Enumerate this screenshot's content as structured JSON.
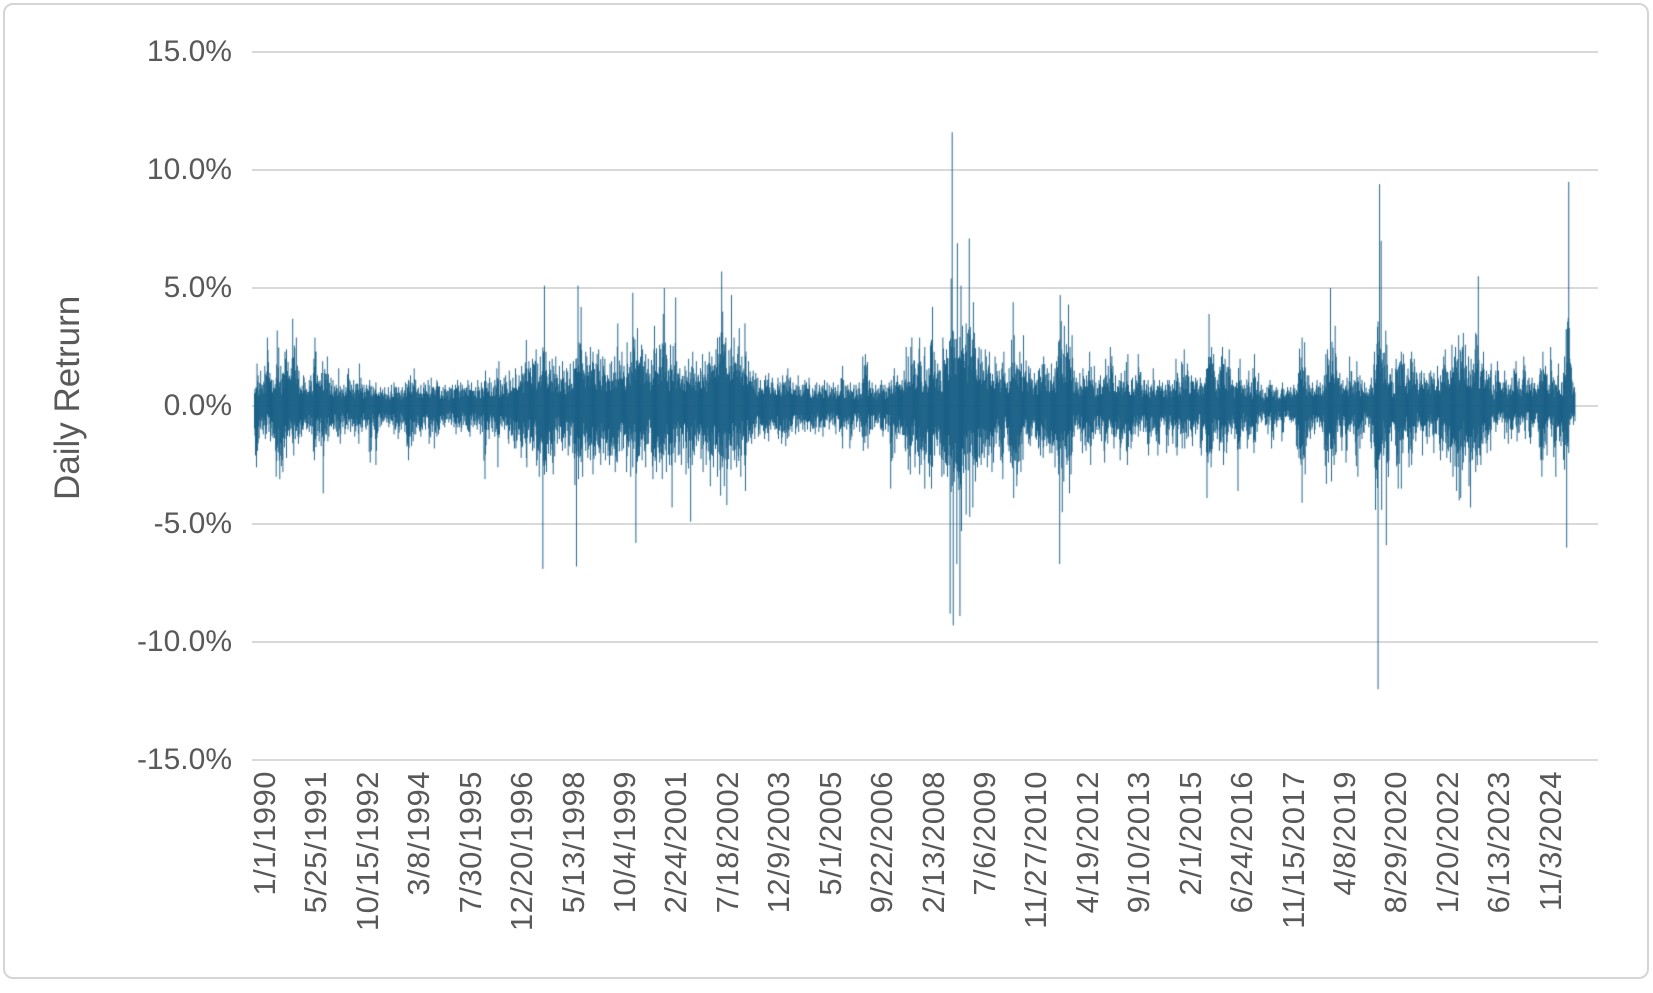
{
  "chart_data": {
    "type": "bar",
    "title": "",
    "ylabel": "Daily Retrurn",
    "xlabel": "",
    "legend": "none",
    "grid": "horizontal",
    "ylim_percent": [
      -15,
      15
    ],
    "y_tick_interval_percent": 5,
    "y_ticks": [
      {
        "label": "15.0%",
        "value": 15
      },
      {
        "label": "10.0%",
        "value": 10
      },
      {
        "label": "5.0%",
        "value": 5
      },
      {
        "label": "0.0%",
        "value": 0
      },
      {
        "label": "-5.0%",
        "value": -5
      },
      {
        "label": "-10.0%",
        "value": -10
      },
      {
        "label": "-15.0%",
        "value": -15
      }
    ],
    "x_tick_labels": [
      "1/1/1990",
      "5/25/1991",
      "10/15/1992",
      "3/8/1994",
      "7/30/1995",
      "12/20/1996",
      "5/13/1998",
      "10/4/1999",
      "2/24/2001",
      "7/18/2002",
      "12/9/2003",
      "5/1/2005",
      "9/22/2006",
      "2/13/2008",
      "7/6/2009",
      "11/27/2010",
      "4/19/2012",
      "9/10/2013",
      "2/1/2015",
      "6/24/2016",
      "11/15/2017",
      "4/8/2019",
      "8/29/2020",
      "1/20/2022",
      "6/13/2023",
      "11/3/2024"
    ],
    "series": [
      {
        "name": "Daily Return",
        "sampling": "monthly high/low envelope in percent, Jan 1990 - Jun 2025, read from plot",
        "months_start": "1990-01",
        "hi": [
          1.8,
          1.3,
          1.5,
          1.7,
          2.9,
          1.4,
          1.1,
          3.2,
          1.7,
          2.3,
          2.4,
          1.6,
          3.7,
          2.9,
          1.5,
          1.3,
          1.2,
          1.1,
          1.3,
          2.9,
          1.3,
          1.4,
          1.9,
          2.1,
          1.2,
          1.1,
          0.9,
          1.6,
          0.9,
          0.8,
          1.6,
          0.9,
          1.1,
          1.8,
          1.2,
          0.9,
          0.9,
          1.1,
          0.8,
          1.0,
          0.8,
          0.7,
          0.8,
          0.8,
          0.9,
          1.0,
          0.8,
          0.8,
          1.0,
          1.1,
          1.3,
          1.6,
          1.1,
          0.9,
          1.0,
          0.9,
          1.1,
          1.2,
          1.1,
          1.0,
          0.8,
          0.9,
          0.8,
          0.9,
          0.9,
          1.1,
          1.0,
          0.9,
          1.1,
          0.9,
          1.0,
          0.8,
          1.1,
          1.0,
          1.5,
          1.2,
          1.0,
          1.1,
          1.9,
          1.1,
          1.2,
          1.3,
          1.5,
          1.2,
          1.6,
          1.3,
          1.7,
          2.8,
          1.9,
          2.0,
          2.4,
          1.8,
          2.1,
          5.1,
          2.3,
          1.9,
          2.0,
          2.1,
          1.7,
          1.9,
          1.6,
          1.8,
          1.9,
          2.0,
          5.1,
          4.2,
          2.3,
          2.1,
          2.5,
          2.3,
          2.2,
          2.4,
          2.1,
          2.0,
          1.8,
          1.9,
          2.1,
          3.5,
          2.3,
          1.7,
          2.7,
          2.3,
          4.8,
          3.3,
          2.6,
          2.4,
          2.2,
          2.0,
          2.4,
          3.4,
          2.6,
          3.9,
          5.0,
          2.0,
          2.6,
          4.6,
          1.9,
          1.6,
          1.7,
          1.5,
          2.0,
          2.3,
          1.9,
          1.6,
          2.2,
          1.9,
          2.3,
          2.1,
          2.4,
          2.9,
          5.7,
          4.0,
          2.9,
          4.7,
          2.9,
          2.2,
          3.3,
          2.1,
          3.5,
          1.9,
          1.5,
          1.4,
          1.2,
          1.1,
          1.3,
          1.4,
          1.0,
          1.2,
          1.2,
          1.0,
          1.3,
          1.3,
          1.6,
          1.0,
          0.9,
          1.3,
          0.9,
          1.1,
          1.2,
          0.9,
          0.9,
          1.0,
          0.9,
          1.1,
          1.0,
          0.9,
          1.0,
          0.8,
          0.9,
          1.7,
          1.1,
          0.9,
          1.0,
          0.9,
          0.9,
          1.0,
          2.1,
          2.2,
          1.1,
          1.0,
          0.9,
          0.9,
          1.1,
          0.9,
          1.0,
          1.1,
          1.6,
          1.3,
          1.1,
          1.5,
          2.5,
          2.5,
          2.9,
          1.6,
          2.9,
          1.7,
          2.5,
          1.6,
          4.2,
          2.3,
          1.8,
          1.5,
          2.9,
          2.4,
          5.4,
          11.6,
          6.9,
          5.1,
          3.4,
          3.5,
          7.1,
          4.4,
          3.1,
          2.5,
          2.4,
          2.4,
          2.1,
          2.3,
          2.1,
          1.8,
          1.5,
          2.3,
          1.4,
          1.6,
          4.4,
          3.0,
          2.3,
          1.8,
          3.0,
          1.7,
          1.6,
          1.4,
          1.5,
          1.6,
          2.1,
          1.6,
          1.4,
          1.8,
          1.9,
          4.7,
          3.6,
          3.4,
          4.3,
          3.0,
          1.5,
          1.2,
          1.4,
          1.6,
          1.3,
          2.3,
          1.7,
          1.0,
          1.3,
          1.1,
          2.0,
          1.7,
          2.5,
          1.3,
          1.1,
          1.4,
          1.5,
          2.2,
          1.1,
          1.2,
          1.3,
          2.2,
          1.1,
          1.1,
          1.1,
          1.6,
          1.1,
          1.1,
          1.0,
          0.9,
          1.1,
          1.1,
          1.1,
          2.0,
          1.0,
          2.4,
          1.8,
          1.5,
          1.3,
          1.2,
          1.1,
          1.2,
          1.2,
          3.9,
          2.5,
          2.2,
          1.1,
          2.1,
          2.5,
          2.0,
          2.4,
          1.1,
          1.0,
          2.0,
          1.1,
          0.9,
          1.5,
          1.0,
          2.2,
          1.4,
          0.9,
          0.7,
          0.8,
          1.1,
          0.9,
          0.8,
          0.7,
          1.0,
          0.7,
          0.8,
          0.8,
          0.9,
          1.4,
          2.9,
          2.7,
          1.3,
          1.3,
          1.0,
          1.1,
          1.0,
          0.9,
          2.2,
          2.4,
          5.0,
          3.4,
          1.5,
          1.4,
          1.1,
          1.2,
          2.1,
          1.1,
          1.9,
          1.3,
          1.1,
          1.0,
          0.9,
          1.2,
          2.3,
          9.4,
          7.0,
          3.2,
          2.6,
          1.6,
          1.0,
          2.0,
          2.3,
          2.2,
          1.3,
          2.0,
          2.3,
          2.0,
          1.4,
          1.5,
          1.4,
          1.4,
          1.5,
          1.4,
          1.7,
          1.3,
          2.1,
          2.4,
          1.5,
          2.6,
          2.5,
          3.0,
          3.1,
          2.6,
          2.1,
          2.0,
          3.1,
          5.5,
          1.8,
          2.3,
          1.5,
          1.8,
          0.9,
          1.9,
          1.5,
          1.0,
          1.5,
          0.9,
          1.2,
          1.9,
          1.4,
          0.9,
          2.1,
          1.1,
          1.2,
          1.2,
          0.9,
          1.6,
          2.3,
          1.7,
          0.9,
          2.5,
          1.1,
          1.8,
          1.0,
          2.1,
          9.5,
          3.3,
          1.0
        ],
        "lo": [
          -2.6,
          -1.9,
          -1.2,
          -1.4,
          -1.1,
          -1.5,
          -1.9,
          -3.0,
          -3.1,
          -2.8,
          -2.2,
          -1.3,
          -2.1,
          -1.4,
          -1.6,
          -1.3,
          -1.0,
          -1.1,
          -1.2,
          -2.3,
          -1.5,
          -1.7,
          -3.7,
          -1.5,
          -1.3,
          -1.0,
          -1.3,
          -1.6,
          -0.9,
          -1.2,
          -1.0,
          -1.1,
          -1.3,
          -1.6,
          -1.1,
          -0.9,
          -1.0,
          -2.4,
          -1.0,
          -2.5,
          -0.9,
          -0.8,
          -0.7,
          -0.9,
          -0.8,
          -1.2,
          -1.4,
          -1.0,
          -1.1,
          -2.3,
          -1.7,
          -1.5,
          -1.2,
          -1.3,
          -1.0,
          -1.0,
          -1.6,
          -1.1,
          -1.8,
          -1.2,
          -0.8,
          -0.9,
          -0.7,
          -0.8,
          -0.9,
          -1.2,
          -1.1,
          -0.8,
          -1.0,
          -1.3,
          -0.9,
          -1.0,
          -1.2,
          -1.1,
          -3.1,
          -1.4,
          -1.1,
          -1.3,
          -2.6,
          -1.2,
          -1.0,
          -1.4,
          -1.6,
          -1.8,
          -1.8,
          -1.5,
          -2.2,
          -2.6,
          -1.6,
          -1.9,
          -1.8,
          -3.0,
          -2.0,
          -6.9,
          -2.8,
          -2.1,
          -2.9,
          -1.6,
          -1.4,
          -1.9,
          -1.8,
          -2.1,
          -2.0,
          -6.8,
          -3.1,
          -3.0,
          -1.9,
          -2.2,
          -2.3,
          -2.9,
          -2.1,
          -2.5,
          -2.0,
          -2.3,
          -2.5,
          -2.1,
          -2.8,
          -2.4,
          -1.9,
          -1.8,
          -2.8,
          -3.0,
          -2.6,
          -5.8,
          -2.1,
          -2.3,
          -2.6,
          -1.6,
          -3.1,
          -2.8,
          -2.4,
          -3.1,
          -2.8,
          -2.5,
          -4.3,
          -2.4,
          -2.1,
          -2.5,
          -1.8,
          -2.9,
          -4.9,
          -2.5,
          -1.7,
          -1.5,
          -2.8,
          -2.5,
          -2.3,
          -3.4,
          -2.6,
          -3.0,
          -3.8,
          -3.4,
          -4.2,
          -2.7,
          -2.3,
          -2.6,
          -3.0,
          -2.1,
          -3.6,
          -1.5,
          -1.6,
          -1.4,
          -1.3,
          -1.2,
          -1.4,
          -1.5,
          -1.0,
          -1.0,
          -1.2,
          -1.4,
          -1.6,
          -1.7,
          -1.3,
          -1.1,
          -1.2,
          -1.1,
          -1.0,
          -1.1,
          -1.0,
          -1.1,
          -1.2,
          -0.9,
          -1.1,
          -1.3,
          -0.9,
          -1.0,
          -0.8,
          -1.2,
          -1.1,
          -1.8,
          -0.9,
          -1.0,
          -1.8,
          -1.0,
          -0.9,
          -1.1,
          -1.9,
          -1.8,
          -1.2,
          -1.0,
          -0.9,
          -0.9,
          -1.3,
          -1.0,
          -1.1,
          -3.5,
          -2.0,
          -1.4,
          -1.2,
          -1.8,
          -2.7,
          -2.9,
          -1.5,
          -2.6,
          -2.9,
          -2.5,
          -3.5,
          -3.0,
          -3.5,
          -2.1,
          -1.7,
          -3.0,
          -2.9,
          -3.0,
          -8.8,
          -9.3,
          -6.7,
          -8.9,
          -5.3,
          -4.6,
          -4.7,
          -4.3,
          -3.2,
          -2.6,
          -2.5,
          -2.2,
          -2.6,
          -2.8,
          -2.4,
          -1.6,
          -2.3,
          -3.1,
          -1.2,
          -2.4,
          -3.9,
          -3.4,
          -2.9,
          -2.8,
          -1.2,
          -1.6,
          -1.7,
          -1.3,
          -1.8,
          -2.1,
          -2.2,
          -1.7,
          -2.0,
          -2.0,
          -2.6,
          -6.7,
          -4.5,
          -3.2,
          -3.7,
          -2.9,
          -1.3,
          -1.0,
          -1.5,
          -2.0,
          -1.9,
          -2.5,
          -1.4,
          -1.2,
          -1.2,
          -1.5,
          -2.4,
          -1.6,
          -1.2,
          -1.8,
          -1.2,
          -2.3,
          -1.4,
          -2.5,
          -1.8,
          -1.5,
          -1.2,
          -1.3,
          -1.1,
          -1.1,
          -2.1,
          -1.3,
          -1.5,
          -2.1,
          -0.9,
          -0.8,
          -2.0,
          -1.0,
          -1.6,
          -2.1,
          -1.2,
          -1.8,
          -1.8,
          -1.3,
          -1.7,
          -1.2,
          -1.0,
          -2.1,
          -1.2,
          -3.9,
          -2.6,
          -1.5,
          -1.4,
          -1.9,
          -2.5,
          -2.0,
          -1.1,
          -1.2,
          -1.4,
          -3.6,
          -1.3,
          -0.9,
          -1.8,
          -1.2,
          -2.0,
          -1.1,
          -0.7,
          -0.6,
          -1.2,
          -0.8,
          -1.8,
          -0.9,
          -0.6,
          -1.5,
          -0.7,
          -0.6,
          -0.7,
          -0.8,
          -2.2,
          -4.1,
          -2.9,
          -1.7,
          -1.4,
          -1.2,
          -1.0,
          -0.9,
          -1.1,
          -3.3,
          -2.4,
          -3.2,
          -2.5,
          -1.1,
          -1.9,
          -1.2,
          -2.4,
          -1.1,
          -1.2,
          -3.0,
          -1.8,
          -1.4,
          -0.8,
          -0.9,
          -1.8,
          -4.4,
          -12.0,
          -4.4,
          -2.1,
          -5.9,
          -1.5,
          -1.0,
          -3.5,
          -3.5,
          -2.0,
          -1.3,
          -2.6,
          -2.5,
          -1.5,
          -0.9,
          -2.1,
          -1.3,
          -1.6,
          -0.9,
          -2.0,
          -1.2,
          -2.3,
          -1.9,
          -2.2,
          -2.4,
          -3.0,
          -3.6,
          -4.0,
          -3.9,
          -2.1,
          -3.4,
          -4.3,
          -2.8,
          -2.5,
          -2.5,
          -1.6,
          -2.0,
          -1.9,
          -0.7,
          -1.1,
          -0.6,
          -0.7,
          -1.4,
          -1.6,
          -1.4,
          -0.8,
          -1.5,
          -0.8,
          -1.4,
          -0.6,
          -1.6,
          -0.9,
          -0.7,
          -2.3,
          -3.0,
          -2.1,
          -0.9,
          -1.3,
          -3.0,
          -1.5,
          -1.7,
          -2.7,
          -6.0,
          -0.8,
          -0.8
        ]
      }
    ],
    "notable_extremes_read_from_plot": [
      {
        "period": "Oct 2008",
        "value_percent": 11.6
      },
      {
        "period": "Oct-Dec 2008",
        "value_percent": -9.3
      },
      {
        "period": "Mar 2009",
        "value_percent": 7.1
      },
      {
        "period": "Oct 1997",
        "value_percent": -6.9
      },
      {
        "period": "Aug 1998",
        "value_percent": -6.8
      },
      {
        "period": "Aug 2011",
        "value_percent": -6.7
      },
      {
        "period": "Mar 2020",
        "value_percent": 9.4
      },
      {
        "period": "Mar 2020",
        "value_percent": -12.0
      },
      {
        "period": "Dec 2018",
        "value_percent": 5.0
      },
      {
        "period": "Nov 2022",
        "value_percent": 5.5
      },
      {
        "period": "Apr 2025",
        "value_percent": 9.5
      },
      {
        "period": "Apr 2025",
        "value_percent": -6.0
      }
    ]
  },
  "styles": {
    "bar_color": "#175E85",
    "grid_color": "#D9D9D9",
    "axis_text_color": "#595959",
    "background": "#FFFFFF",
    "frame_border_color": "#D5D5D5"
  }
}
